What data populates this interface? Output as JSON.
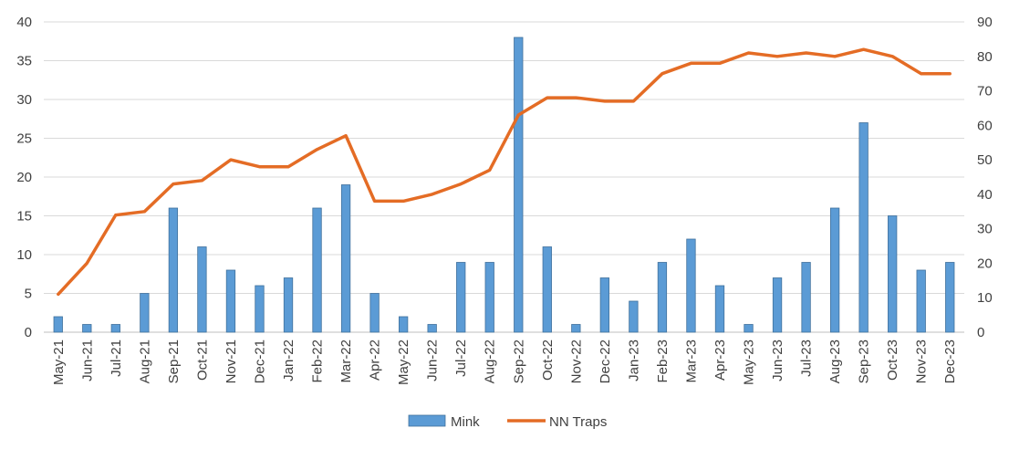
{
  "chart_data": {
    "type": "bar",
    "title": "",
    "xlabel": "",
    "ylabel": "",
    "categories": [
      "May-21",
      "Jun-21",
      "Jul-21",
      "Aug-21",
      "Sep-21",
      "Oct-21",
      "Nov-21",
      "Dec-21",
      "Jan-22",
      "Feb-22",
      "Mar-22",
      "Apr-22",
      "May-22",
      "Jun-22",
      "Jul-22",
      "Aug-22",
      "Sep-22",
      "Oct-22",
      "Nov-22",
      "Dec-22",
      "Jan-23",
      "Feb-23",
      "Mar-23",
      "Apr-23",
      "May-23",
      "Jun-23",
      "Jul-23",
      "Aug-23",
      "Sep-23",
      "Oct-23",
      "Nov-23",
      "Dec-23"
    ],
    "series": [
      {
        "name": "Mink",
        "type": "bar",
        "axis": "left",
        "color": "#5B9BD5",
        "values": [
          2,
          1,
          1,
          5,
          16,
          11,
          8,
          6,
          7,
          16,
          19,
          5,
          2,
          1,
          9,
          9,
          38,
          11,
          1,
          7,
          4,
          9,
          12,
          6,
          1,
          7,
          9,
          16,
          27,
          15,
          8,
          9
        ]
      },
      {
        "name": "NN Traps",
        "type": "line",
        "axis": "right",
        "color": "#E46C25",
        "values": [
          11,
          20,
          34,
          35,
          43,
          44,
          50,
          48,
          48,
          53,
          57,
          38,
          38,
          40,
          43,
          47,
          63,
          68,
          68,
          67,
          67,
          75,
          78,
          78,
          81,
          80,
          81,
          80,
          82,
          80,
          75,
          75
        ]
      }
    ],
    "y_left": {
      "min": 0,
      "max": 40,
      "ticks": [
        "0",
        "5",
        "10",
        "15",
        "20",
        "25",
        "30",
        "35",
        "40"
      ]
    },
    "y_right": {
      "min": 0,
      "max": 90,
      "ticks": [
        "0",
        "10",
        "20",
        "30",
        "40",
        "50",
        "60",
        "70",
        "80",
        "90"
      ]
    },
    "grid": true,
    "legend_position": "bottom"
  }
}
